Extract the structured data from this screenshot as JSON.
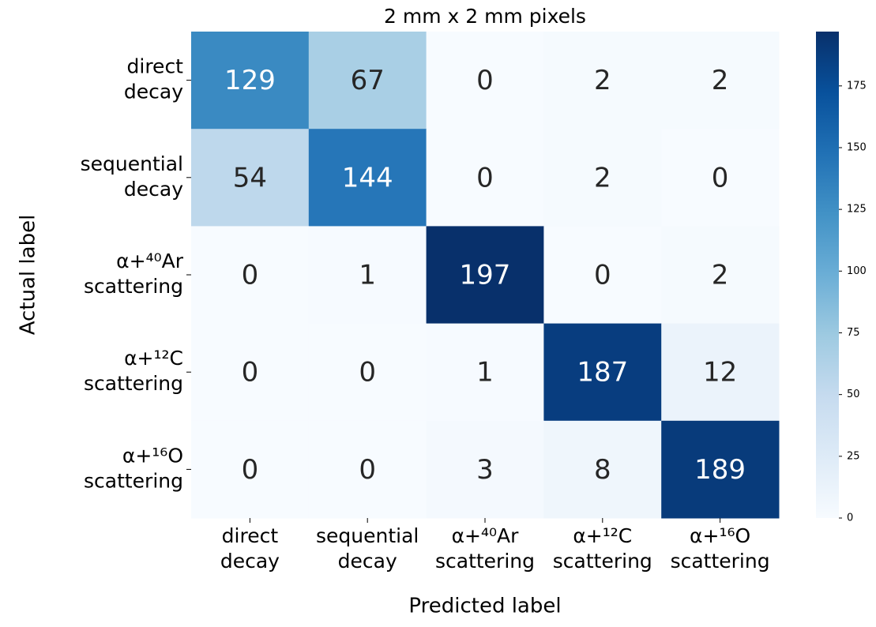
{
  "chart_data": {
    "type": "heatmap",
    "title": "2 mm x 2 mm pixels",
    "xlabel": "Predicted label",
    "ylabel": "Actual label",
    "x_categories": [
      [
        "direct",
        "decay"
      ],
      [
        "sequential",
        "decay"
      ],
      [
        "α+⁴⁰Ar",
        "scattering"
      ],
      [
        "α+¹²C",
        "scattering"
      ],
      [
        "α+¹⁶O",
        "scattering"
      ]
    ],
    "y_categories": [
      [
        "direct",
        "decay"
      ],
      [
        "sequential",
        "decay"
      ],
      [
        "α+⁴⁰Ar",
        "scattering"
      ],
      [
        "α+¹²C",
        "scattering"
      ],
      [
        "α+¹⁶O",
        "scattering"
      ]
    ],
    "values": [
      [
        129,
        67,
        0,
        2,
        2
      ],
      [
        54,
        144,
        0,
        2,
        0
      ],
      [
        0,
        1,
        197,
        0,
        2
      ],
      [
        0,
        0,
        1,
        187,
        12
      ],
      [
        0,
        0,
        3,
        8,
        189
      ]
    ],
    "colormap": "Blues",
    "colorbar": {
      "lim": [
        0,
        197
      ],
      "ticks": [
        0,
        25,
        50,
        75,
        100,
        125,
        150,
        175
      ]
    }
  }
}
